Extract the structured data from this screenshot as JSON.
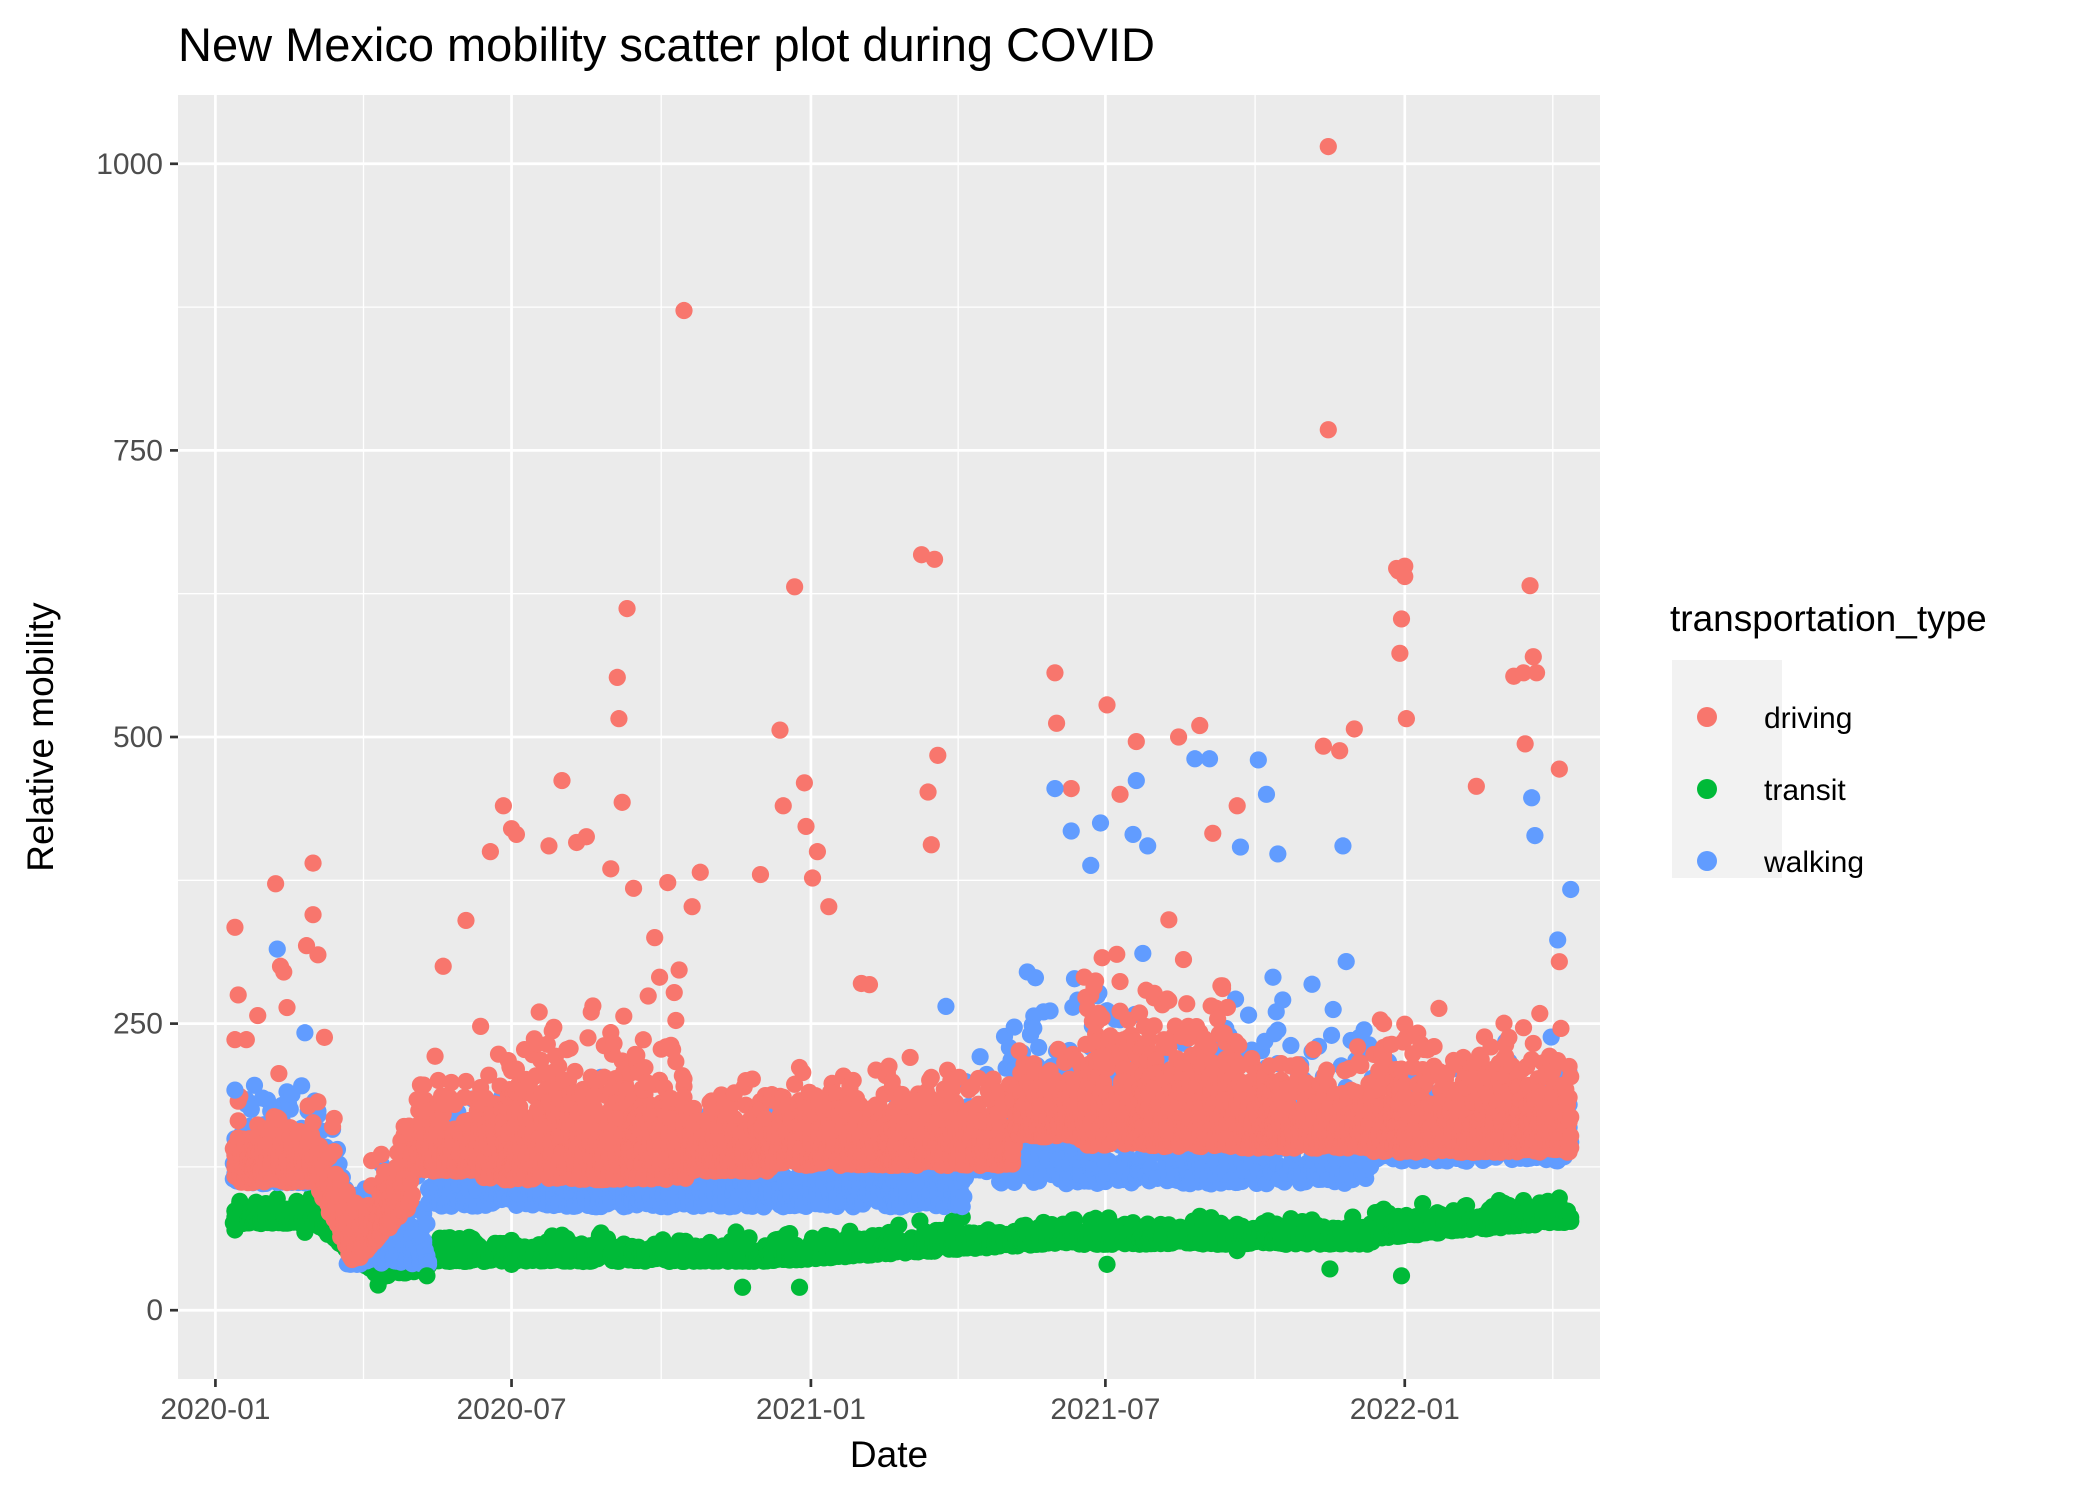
{
  "chart_data": {
    "type": "scatter",
    "title": "New Mexico mobility scatter plot during COVID",
    "xlabel": "Date",
    "ylabel": "Relative mobility",
    "x_ticks": [
      "2020-01",
      "2020-07",
      "2021-01",
      "2021-07",
      "2022-01"
    ],
    "x_tick_dates": [
      "2020-01-01",
      "2020-07-01",
      "2021-01-01",
      "2021-07-01",
      "2022-01-01"
    ],
    "x_range": [
      "2019-12-09",
      "2022-05-01"
    ],
    "y_ticks": [
      0,
      250,
      500,
      750,
      1000
    ],
    "ylim": [
      -60,
      1060
    ],
    "grid": true,
    "legend": {
      "title": "transportation_type",
      "placement": "right"
    },
    "series": [
      {
        "name": "driving",
        "color": "#F8766D",
        "points": [
          [
            "2020-01-13",
            334
          ],
          [
            "2020-01-13",
            236
          ],
          [
            "2020-01-15",
            275
          ],
          [
            "2020-01-20",
            236
          ],
          [
            "2020-01-27",
            257
          ],
          [
            "2020-02-07",
            372
          ],
          [
            "2020-02-10",
            300
          ],
          [
            "2020-02-12",
            295
          ],
          [
            "2020-02-14",
            264
          ],
          [
            "2020-02-26",
            318
          ],
          [
            "2020-03-01",
            390
          ],
          [
            "2020-03-01",
            345
          ],
          [
            "2020-03-04",
            310
          ],
          [
            "2020-03-08",
            238
          ],
          [
            "2020-03-13",
            160
          ],
          [
            "2020-05-20",
            300
          ],
          [
            "2020-06-03",
            340
          ],
          [
            "2020-06-18",
            400
          ],
          [
            "2020-06-26",
            440
          ],
          [
            "2020-07-01",
            420
          ],
          [
            "2020-07-04",
            415
          ],
          [
            "2020-07-24",
            405
          ],
          [
            "2020-08-01",
            462
          ],
          [
            "2020-08-10",
            408
          ],
          [
            "2020-08-16",
            413
          ],
          [
            "2020-08-31",
            385
          ],
          [
            "2020-09-04",
            552
          ],
          [
            "2020-09-05",
            516
          ],
          [
            "2020-09-07",
            443
          ],
          [
            "2020-09-10",
            612
          ],
          [
            "2020-09-14",
            368
          ],
          [
            "2020-09-27",
            325
          ],
          [
            "2020-10-05",
            373
          ],
          [
            "2020-10-15",
            872
          ],
          [
            "2020-10-20",
            352
          ],
          [
            "2020-10-25",
            382
          ],
          [
            "2020-12-01",
            380
          ],
          [
            "2020-12-13",
            506
          ],
          [
            "2020-12-15",
            440
          ],
          [
            "2020-12-22",
            631
          ],
          [
            "2020-12-28",
            460
          ],
          [
            "2020-12-29",
            422
          ],
          [
            "2021-01-02",
            377
          ],
          [
            "2021-01-05",
            400
          ],
          [
            "2021-01-12",
            352
          ],
          [
            "2021-02-01",
            285
          ],
          [
            "2021-02-06",
            284
          ],
          [
            "2021-03-10",
            659
          ],
          [
            "2021-03-14",
            452
          ],
          [
            "2021-03-18",
            655
          ],
          [
            "2021-03-20",
            484
          ],
          [
            "2021-03-16",
            406
          ],
          [
            "2021-05-31",
            556
          ],
          [
            "2021-06-01",
            512
          ],
          [
            "2021-06-10",
            455
          ],
          [
            "2021-07-02",
            528
          ],
          [
            "2021-07-10",
            450
          ],
          [
            "2021-07-20",
            496
          ],
          [
            "2021-08-15",
            500
          ],
          [
            "2021-08-28",
            510
          ],
          [
            "2021-09-05",
            416
          ],
          [
            "2021-09-20",
            440
          ],
          [
            "2021-11-15",
            1015
          ],
          [
            "2021-11-15",
            768
          ],
          [
            "2021-11-12",
            492
          ],
          [
            "2021-11-22",
            488
          ],
          [
            "2021-12-01",
            507
          ],
          [
            "2021-12-27",
            647
          ],
          [
            "2021-12-28",
            645
          ],
          [
            "2022-01-01",
            649
          ],
          [
            "2022-01-01",
            640
          ],
          [
            "2022-01-02",
            516
          ],
          [
            "2021-12-30",
            603
          ],
          [
            "2021-12-29",
            573
          ],
          [
            "2022-02-14",
            457
          ],
          [
            "2022-03-09",
            553
          ],
          [
            "2022-03-15",
            556
          ],
          [
            "2022-03-16",
            494
          ],
          [
            "2022-03-19",
            632
          ],
          [
            "2022-03-21",
            570
          ],
          [
            "2022-03-23",
            556
          ],
          [
            "2022-04-06",
            472
          ],
          [
            "2022-04-06",
            304
          ]
        ]
      },
      {
        "name": "transit",
        "color": "#00BA38",
        "points": [
          [
            "2020-01-13",
            70
          ],
          [
            "2020-02-25",
            68
          ],
          [
            "2020-04-10",
            22
          ],
          [
            "2020-05-10",
            30
          ],
          [
            "2020-07-01",
            40
          ],
          [
            "2020-09-01",
            52
          ],
          [
            "2020-11-20",
            20
          ],
          [
            "2020-12-25",
            20
          ],
          [
            "2021-07-02",
            40
          ],
          [
            "2021-09-20",
            52
          ],
          [
            "2021-11-16",
            36
          ],
          [
            "2021-12-30",
            30
          ],
          [
            "2022-04-06",
            92
          ]
        ]
      },
      {
        "name": "walking",
        "color": "#619CFF",
        "points": [
          [
            "2020-01-13",
            192
          ],
          [
            "2020-02-08",
            315
          ],
          [
            "2020-01-30",
            185
          ],
          [
            "2020-02-25",
            242
          ],
          [
            "2021-03-25",
            265
          ],
          [
            "2021-05-31",
            455
          ],
          [
            "2021-06-10",
            418
          ],
          [
            "2021-06-22",
            388
          ],
          [
            "2021-06-28",
            425
          ],
          [
            "2021-07-18",
            415
          ],
          [
            "2021-07-20",
            462
          ],
          [
            "2021-07-27",
            405
          ],
          [
            "2021-08-25",
            481
          ],
          [
            "2021-09-03",
            481
          ],
          [
            "2021-09-22",
            404
          ],
          [
            "2021-10-03",
            480
          ],
          [
            "2021-10-08",
            450
          ],
          [
            "2021-10-15",
            398
          ],
          [
            "2021-11-24",
            405
          ],
          [
            "2022-03-20",
            447
          ],
          [
            "2022-03-22",
            414
          ],
          [
            "2022-04-13",
            367
          ],
          [
            "2022-04-05",
            323
          ]
        ]
      }
    ]
  }
}
